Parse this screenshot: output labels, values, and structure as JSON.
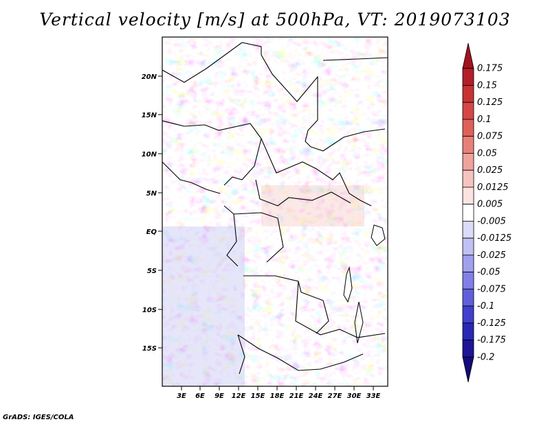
{
  "title": "Vertical velocity [m/s] at 500hPa, VT: 2019073103",
  "credit": "GrADS: IGES/COLA",
  "map": {
    "lat_labels": [
      "20N",
      "15N",
      "10N",
      "5N",
      "EQ",
      "5S",
      "10S",
      "15S"
    ],
    "lon_labels": [
      "3E",
      "6E",
      "9E",
      "12E",
      "15E",
      "18E",
      "21E",
      "24E",
      "27E",
      "30E",
      "33E"
    ]
  },
  "colorbar": {
    "labels": [
      "0.175",
      "0.15",
      "0.125",
      "0.1",
      "0.075",
      "0.05",
      "0.025",
      "0.0125",
      "0.005",
      "-0.005",
      "-0.0125",
      "-0.025",
      "-0.05",
      "-0.075",
      "-0.1",
      "-0.125",
      "-0.175",
      "-0.2"
    ],
    "colors": [
      "#a0141e",
      "#b41e28",
      "#c83232",
      "#d74646",
      "#e0605a",
      "#e8807a",
      "#f0a29c",
      "#f6c4c0",
      "#fbe3e1",
      "#ffffff",
      "#dcdcf8",
      "#c0c0f4",
      "#a0a0ee",
      "#8080e6",
      "#6060dc",
      "#4040cc",
      "#2828b4",
      "#1e1496",
      "#140a78"
    ]
  }
}
